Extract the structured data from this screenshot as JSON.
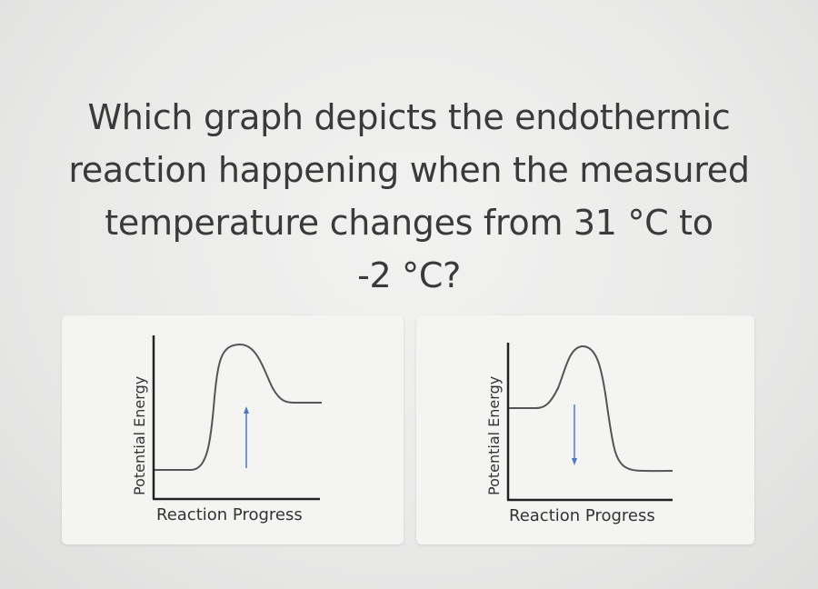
{
  "question": {
    "lines": [
      "Which graph depicts the endothermic",
      "reaction happening when the measured",
      "temperature changes from 31 °C to",
      "-2 °C?"
    ]
  },
  "options": [
    {
      "ylabel": "Potential Energy",
      "xlabel": "Reaction Progress",
      "profile": "products-higher",
      "arrow": "up-arrow-icon"
    },
    {
      "ylabel": "Potential Energy",
      "xlabel": "Reaction Progress",
      "profile": "products-lower",
      "arrow": "down-arrow-icon"
    }
  ],
  "colors": {
    "curve": "#555555",
    "axis": "#222222",
    "arrow": "#4a78c4"
  }
}
